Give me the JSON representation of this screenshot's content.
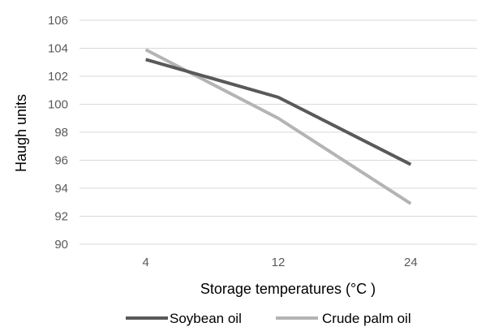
{
  "chart_data": {
    "type": "line",
    "title": "",
    "xlabel": "Storage temperatures (°C )",
    "ylabel": "Haugh units",
    "categories": [
      "4",
      "12",
      "24"
    ],
    "ylim": [
      90,
      106
    ],
    "yticks": [
      90,
      92,
      94,
      96,
      98,
      100,
      102,
      104,
      106
    ],
    "grid": true,
    "legend_position": "bottom",
    "series": [
      {
        "name": "Soybean oil",
        "values": [
          103.2,
          100.5,
          95.7
        ],
        "color": "#595959"
      },
      {
        "name": "Crude palm oil",
        "values": [
          103.9,
          99.0,
          92.9
        ],
        "color": "#b4b4b4"
      }
    ]
  }
}
